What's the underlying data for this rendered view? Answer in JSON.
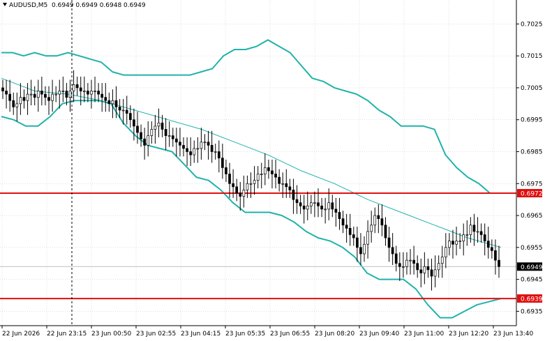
{
  "header": {
    "symbol": "AUDUSD,M5",
    "ohlc": "0.6949 0.6949 0.6948 0.6949"
  },
  "colors": {
    "band": "#20b2aa",
    "level_line": "#e01010",
    "level_badge": "#e01010",
    "price_badge": "#000000",
    "grid": "#c0c0c0"
  },
  "chart_data": {
    "type": "candlestick",
    "y_range": [
      0.69305,
      0.70325
    ],
    "y_ticks": [
      "0.7025",
      "0.7015",
      "0.7005",
      "0.6995",
      "0.6985",
      "0.6975",
      "0.6965",
      "0.6955",
      "0.6945",
      "0.6935"
    ],
    "x_ticks": [
      "22 Jun 2026",
      "22 Jun 23:15",
      "23 Jun 00:50",
      "23 Jun 02:55",
      "23 Jun 04:15",
      "23 Jun 05:35",
      "23 Jun 06:55",
      "23 Jun 08:20",
      "23 Jun 09:40",
      "23 Jun 11:00",
      "23 Jun 12:20",
      "23 Jun 13:40"
    ],
    "levels": [
      {
        "value": 0.6972,
        "label": "0.6972"
      },
      {
        "value": 0.6939,
        "label": "0.6939"
      }
    ],
    "current_price": {
      "value": 0.6949,
      "label": "0.6949"
    },
    "close": [
      0.7004,
      0.7003,
      0.7001,
      0.6999,
      0.7,
      0.7002,
      0.7001,
      0.7003,
      0.7003,
      0.7002,
      0.7004,
      0.7003,
      0.7002,
      0.7001,
      0.7003,
      0.7003,
      0.7004,
      0.7004,
      0.7002,
      0.7004,
      0.7006,
      0.7005,
      0.7004,
      0.7004,
      0.7003,
      0.7004,
      0.7004,
      0.7003,
      0.7002,
      0.7001,
      0.7,
      0.7001,
      0.6999,
      0.6998,
      0.6998,
      0.6997,
      0.6995,
      0.6993,
      0.6991,
      0.6989,
      0.6987,
      0.699,
      0.6992,
      0.6993,
      0.6994,
      0.6992,
      0.699,
      0.699,
      0.6989,
      0.6988,
      0.6987,
      0.6986,
      0.6985,
      0.6984,
      0.6986,
      0.6986,
      0.6988,
      0.6988,
      0.6987,
      0.6985,
      0.6985,
      0.6983,
      0.698,
      0.6978,
      0.6975,
      0.6974,
      0.6972,
      0.6971,
      0.6973,
      0.6975,
      0.6975,
      0.6976,
      0.6978,
      0.6978,
      0.698,
      0.6979,
      0.6978,
      0.6977,
      0.6975,
      0.6975,
      0.6974,
      0.6973,
      0.697,
      0.6969,
      0.6968,
      0.6967,
      0.6968,
      0.6969,
      0.6969,
      0.6968,
      0.6967,
      0.6967,
      0.6969,
      0.6967,
      0.6966,
      0.6964,
      0.6962,
      0.6961,
      0.6959,
      0.6958,
      0.6955,
      0.6953,
      0.6956,
      0.696,
      0.6962,
      0.6965,
      0.6964,
      0.6962,
      0.6958,
      0.6955,
      0.6953,
      0.695,
      0.6949,
      0.6949,
      0.6951,
      0.6951,
      0.695,
      0.6948,
      0.6947,
      0.6949,
      0.6948,
      0.6946,
      0.6948,
      0.695,
      0.6952,
      0.6955,
      0.6957,
      0.6956,
      0.6957,
      0.6957,
      0.6959,
      0.6959,
      0.6962,
      0.696,
      0.696,
      0.6959,
      0.6957,
      0.6955,
      0.6954,
      0.6951,
      0.6949
    ],
    "band_upper": [
      0.7016,
      0.7016,
      0.7015,
      0.7016,
      0.7015,
      0.7015,
      0.7016,
      0.7015,
      0.7014,
      0.7013,
      0.701,
      0.7009,
      0.7009,
      0.7009,
      0.7009,
      0.7009,
      0.7009,
      0.7009,
      0.701,
      0.7011,
      0.7015,
      0.7017,
      0.7017,
      0.7018,
      0.702,
      0.7018,
      0.7016,
      0.7012,
      0.7008,
      0.7007,
      0.7005,
      0.7004,
      0.7003,
      0.7001,
      0.6998,
      0.6996,
      0.6993,
      0.6993,
      0.6993,
      0.6992,
      0.6984,
      0.698,
      0.6977,
      0.6975,
      0.6972,
      0.6972
    ],
    "band_middle": [
      0.7008,
      0.7004,
      0.7003,
      0.7001,
      0.6998,
      0.6995,
      0.6992,
      0.6988,
      0.6984,
      0.6979,
      0.6975,
      0.697,
      0.6966,
      0.6962,
      0.6958,
      0.6955
    ],
    "band_lower": [
      0.6996,
      0.6995,
      0.6993,
      0.6993,
      0.6996,
      0.7,
      0.7001,
      0.7001,
      0.7001,
      0.7,
      0.6994,
      0.699,
      0.6987,
      0.6986,
      0.6985,
      0.6981,
      0.6977,
      0.6976,
      0.6973,
      0.6969,
      0.6966,
      0.6966,
      0.6966,
      0.6965,
      0.6963,
      0.696,
      0.6958,
      0.6957,
      0.6955,
      0.6952,
      0.6947,
      0.6945,
      0.6945,
      0.6945,
      0.6942,
      0.6937,
      0.6933,
      0.6933,
      0.6935,
      0.6937,
      0.6938,
      0.6939
    ]
  }
}
